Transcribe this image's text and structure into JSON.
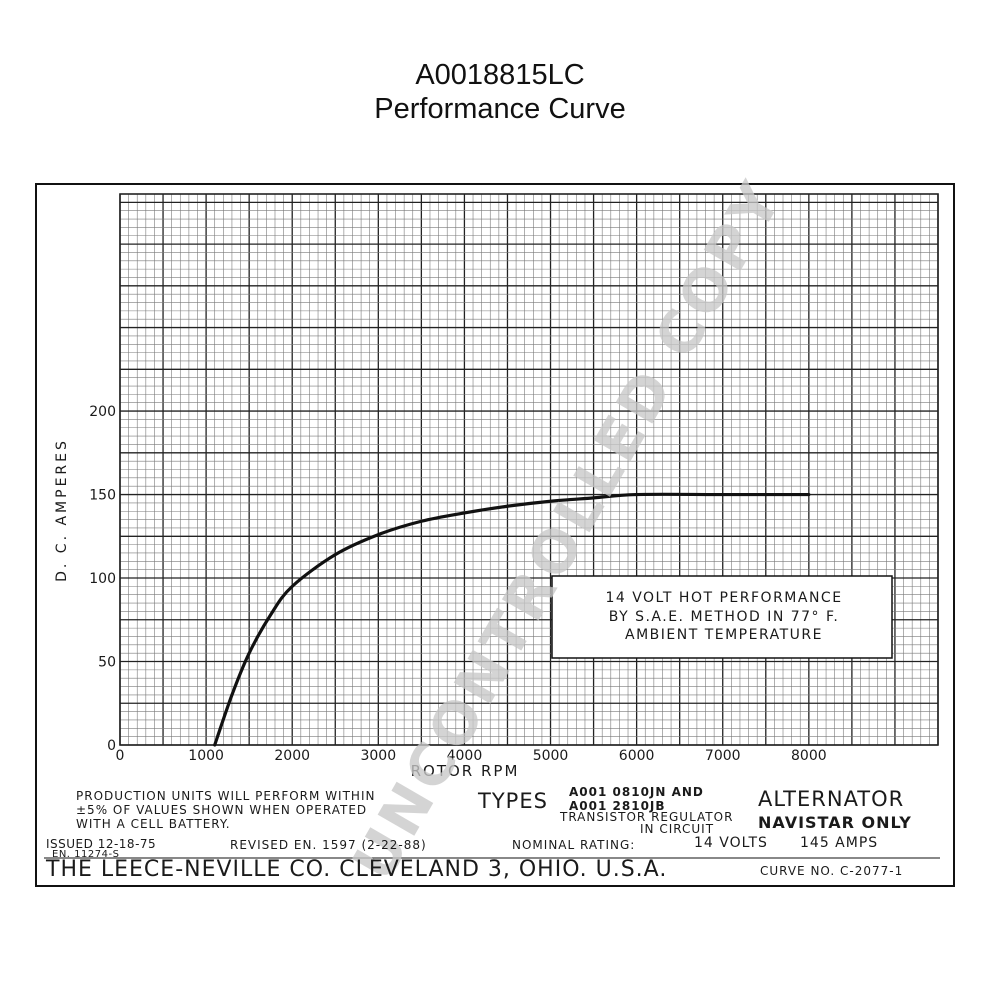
{
  "header": {
    "part_number": "A0018815LC",
    "subtitle": "Performance Curve"
  },
  "chart_data": {
    "type": "line",
    "xlabel": "ROTOR RPM",
    "ylabel": "D. C. AMPERES",
    "xlim": [
      0,
      9500
    ],
    "ylim": [
      0,
      330
    ],
    "x_ticks": [
      "0",
      "1000",
      "2000",
      "3000",
      "4000",
      "5000",
      "6000",
      "7000",
      "8000"
    ],
    "y_ticks": [
      "0",
      "50",
      "100",
      "150",
      "200"
    ],
    "grid": true,
    "series": [
      {
        "x": [
          1100,
          1300,
          1500,
          1750,
          2000,
          2500,
          3000,
          3500,
          4000,
          4500,
          5000,
          5500,
          6000,
          7000,
          8000
        ],
        "values": [
          0,
          30,
          55,
          78,
          95,
          114,
          126,
          134,
          139,
          143,
          146,
          148,
          150,
          150,
          150
        ]
      }
    ],
    "annotation": {
      "line1": "14 VOLT HOT PERFORMANCE",
      "line2": "BY S.A.E. METHOD IN 77° F.",
      "line3": "AMBIENT TEMPERATURE"
    }
  },
  "sheet": {
    "production_line1": "PRODUCTION UNITS WILL PERFORM WITHIN",
    "production_line2": "±5% OF VALUES SHOWN WHEN OPERATED",
    "production_line3": "WITH A CELL BATTERY.",
    "types_label": "TYPES",
    "type1": "A001 0810JN AND",
    "type2": "A001 2810JB",
    "regulator_line1": "TRANSISTOR REGULATOR",
    "regulator_line2": "IN CIRCUIT",
    "alternator_label": "ALTERNATOR",
    "navistar_label": "NAVISTAR ONLY",
    "issued": "ISSUED 12-18-75",
    "en_number": "EN. 11274-S",
    "revised": "REVISED EN. 1597 (2-22-88)",
    "nominal_label": "NOMINAL RATING:",
    "volts": "14 VOLTS",
    "amps": "145 AMPS",
    "company": "THE LEECE-NEVILLE CO. CLEVELAND 3, OHIO. U.S.A.",
    "curve_no": "CURVE NO. C-2077-1"
  },
  "watermark": "UNCONTROLLED COPY",
  "colors": {
    "grid_major": "#222222",
    "grid_minor": "#7a7a7a",
    "curve": "#111111",
    "watermark": "#c8c8c8"
  }
}
